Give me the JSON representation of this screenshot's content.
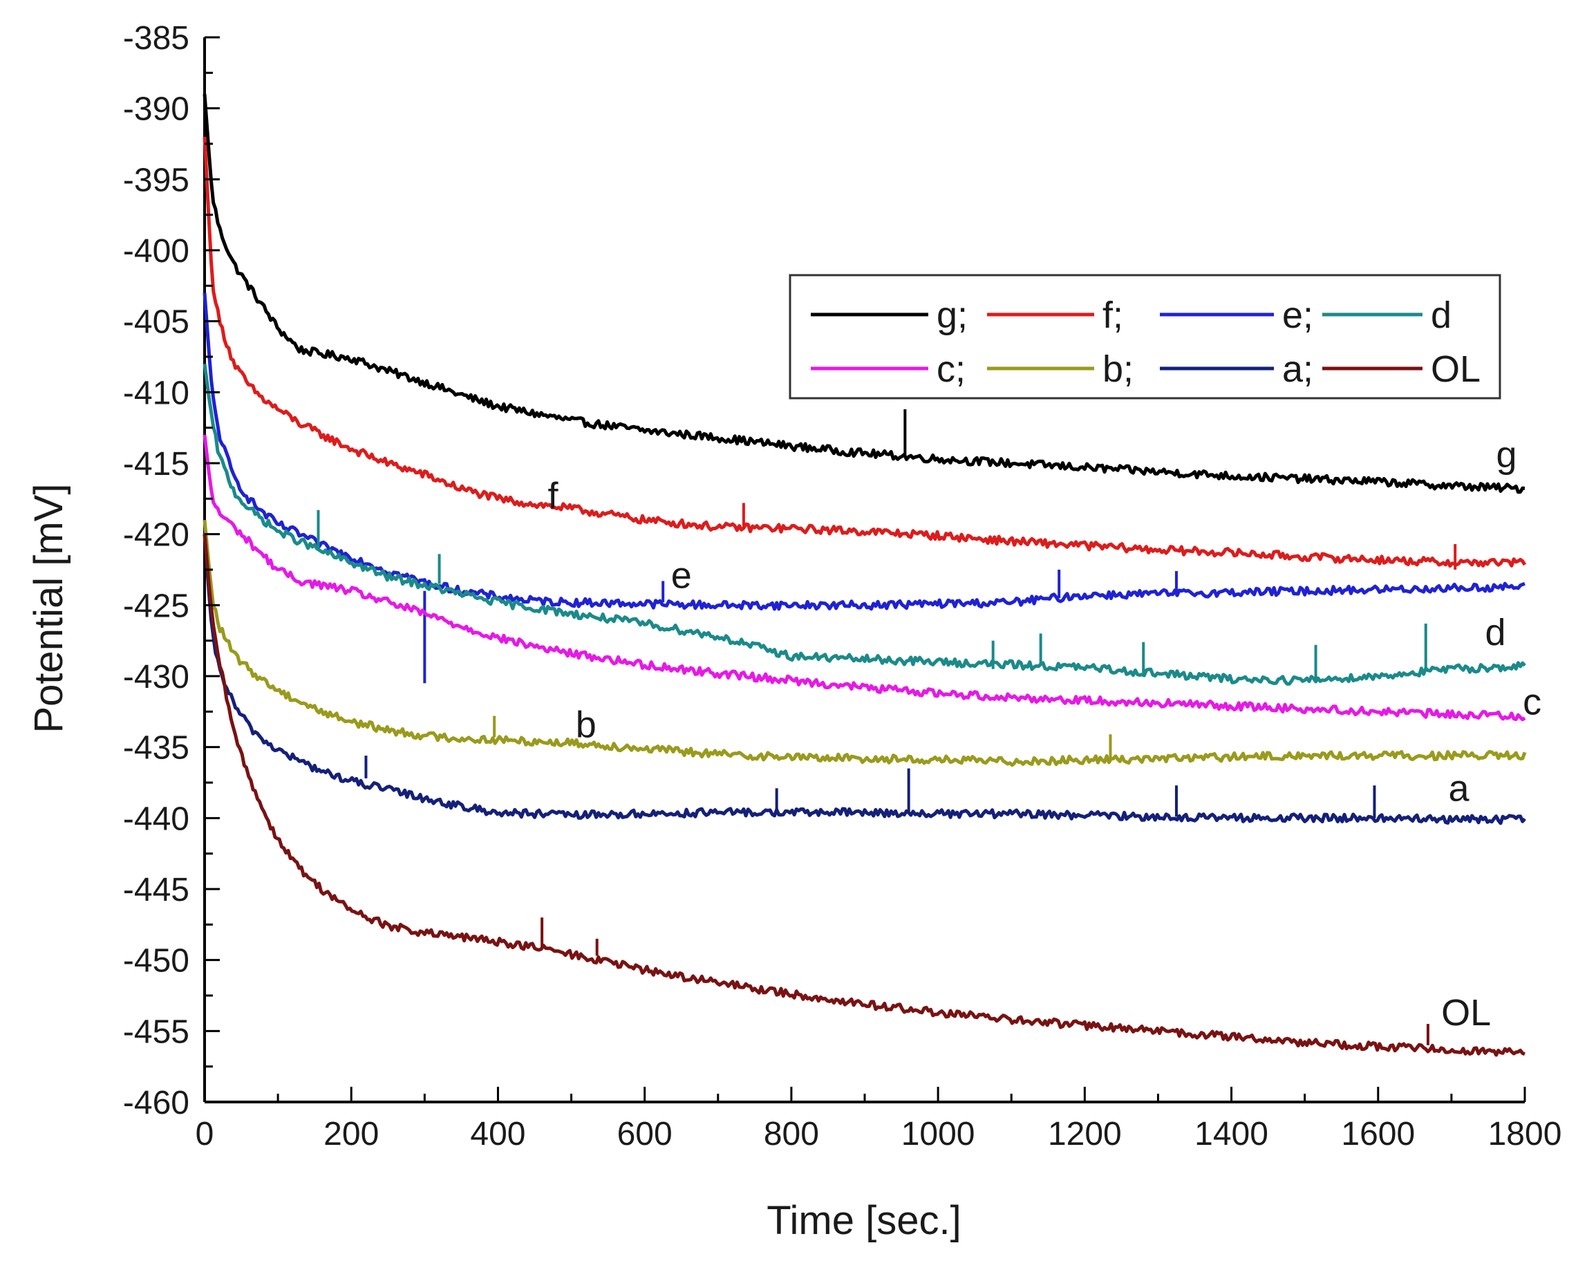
{
  "chart_data": {
    "type": "line",
    "title": "",
    "xlabel": "Time [sec.]",
    "ylabel": "Potential [mV]",
    "xlim": [
      0,
      1800
    ],
    "ylim": [
      -460,
      -385
    ],
    "x_ticks": [
      0,
      200,
      400,
      600,
      800,
      1000,
      1200,
      1400,
      1600,
      1800
    ],
    "y_ticks": [
      -385,
      -390,
      -395,
      -400,
      -405,
      -410,
      -415,
      -420,
      -425,
      -430,
      -435,
      -440,
      -445,
      -450,
      -455,
      -460
    ],
    "x_tick_labels": [
      "0",
      "200",
      "400",
      "600",
      "800",
      "1000",
      "1200",
      "1400",
      "1600",
      "1800"
    ],
    "y_tick_labels": [
      "-385",
      "-390",
      "-395",
      "-400",
      "-405",
      "-410",
      "-415",
      "-420",
      "-425",
      "-430",
      "-435",
      "-440",
      "-445",
      "-450",
      "-455",
      "-460"
    ],
    "legend_position": "top-right",
    "legend": [
      [
        "g;",
        "f;",
        "e;",
        "d"
      ],
      [
        "c;",
        "b;",
        "a;",
        "OL"
      ]
    ],
    "series": [
      {
        "name": "g",
        "label": "g",
        "legend_label": "g;",
        "color": "#000000",
        "x": [
          0,
          10,
          20,
          40,
          60,
          80,
          100,
          130,
          160,
          200,
          250,
          300,
          350,
          400,
          450,
          500,
          600,
          700,
          800,
          900,
          1000,
          1100,
          1200,
          1300,
          1400,
          1500,
          1600,
          1700,
          1800
        ],
        "y": [
          -389,
          -396,
          -398.5,
          -401,
          -402.5,
          -404,
          -405.5,
          -407,
          -407.3,
          -407.6,
          -408.5,
          -409.3,
          -410.2,
          -411,
          -411.5,
          -412,
          -412.7,
          -413.2,
          -413.8,
          -414.3,
          -414.7,
          -415,
          -415.3,
          -415.6,
          -415.9,
          -416.1,
          -416.3,
          -416.6,
          -416.8
        ],
        "spikes": [
          [
            955,
            -414.5,
            -411.2
          ]
        ]
      },
      {
        "name": "f",
        "label": "f",
        "legend_label": "f;",
        "color": "#dd1c1c",
        "x": [
          0,
          10,
          20,
          40,
          60,
          80,
          100,
          130,
          160,
          200,
          250,
          300,
          350,
          400,
          450,
          500,
          600,
          700,
          800,
          900,
          1000,
          1100,
          1200,
          1300,
          1400,
          1500,
          1600,
          1700,
          1800
        ],
        "y": [
          -392,
          -402,
          -405,
          -408,
          -409.5,
          -410.5,
          -411.2,
          -412.2,
          -413,
          -414,
          -415,
          -415.8,
          -416.8,
          -417.5,
          -417.9,
          -418.2,
          -419,
          -419.5,
          -419.6,
          -419.8,
          -420.1,
          -420.5,
          -420.8,
          -421.1,
          -421.3,
          -421.6,
          -421.8,
          -422,
          -422
        ],
        "spikes": [
          [
            735,
            -419.5,
            -417.8
          ],
          [
            1705,
            -422.5,
            -420.7
          ]
        ]
      },
      {
        "name": "e",
        "label": "e",
        "legend_label": "e;",
        "color": "#1f22d4",
        "x": [
          0,
          10,
          20,
          40,
          60,
          80,
          100,
          130,
          160,
          200,
          250,
          300,
          350,
          400,
          450,
          500,
          600,
          700,
          800,
          900,
          1000,
          1100,
          1200,
          1300,
          1400,
          1500,
          1600,
          1700,
          1800
        ],
        "y": [
          -403,
          -410,
          -413,
          -416,
          -417.5,
          -418.5,
          -419.3,
          -420,
          -420.8,
          -421.6,
          -422.6,
          -423.4,
          -424,
          -424.4,
          -424.7,
          -424.8,
          -424.9,
          -425,
          -425,
          -425,
          -424.9,
          -424.8,
          -424.3,
          -424.2,
          -424.1,
          -424,
          -423.9,
          -423.8,
          -423.7
        ],
        "spikes": [
          [
            300,
            -424,
            -430.5
          ],
          [
            1165,
            -424.5,
            -422.5
          ],
          [
            1325,
            -424.2,
            -422.6
          ],
          [
            625,
            -424.8,
            -423.3
          ]
        ]
      },
      {
        "name": "d",
        "label": "d",
        "legend_label": "d",
        "color": "#1b8a8a",
        "x": [
          0,
          10,
          20,
          40,
          60,
          80,
          100,
          130,
          160,
          200,
          250,
          300,
          350,
          400,
          450,
          500,
          600,
          700,
          800,
          900,
          1000,
          1100,
          1200,
          1300,
          1400,
          1500,
          1600,
          1700,
          1800
        ],
        "y": [
          -408,
          -412,
          -414.5,
          -417,
          -418.2,
          -419,
          -419.8,
          -420.5,
          -421.2,
          -422,
          -423,
          -423.6,
          -424.2,
          -424.8,
          -425.2,
          -425.6,
          -426.3,
          -427.2,
          -428.6,
          -428.8,
          -429,
          -429.2,
          -429.4,
          -429.8,
          -430.2,
          -430.3,
          -430,
          -429.5,
          -429.3
        ],
        "spikes": [
          [
            155,
            -421,
            -418.3
          ],
          [
            320,
            -423.5,
            -421.4
          ],
          [
            1075,
            -429.5,
            -427.5
          ],
          [
            1140,
            -429.2,
            -427
          ],
          [
            1280,
            -429.8,
            -427.6
          ],
          [
            1515,
            -430.3,
            -427.8
          ],
          [
            1665,
            -429.6,
            -426.3
          ]
        ]
      },
      {
        "name": "c",
        "label": "c",
        "legend_label": "c;",
        "color": "#e619e6",
        "x": [
          0,
          10,
          20,
          40,
          60,
          80,
          100,
          130,
          160,
          200,
          250,
          300,
          350,
          400,
          450,
          500,
          600,
          700,
          800,
          900,
          1000,
          1100,
          1200,
          1300,
          1400,
          1500,
          1600,
          1700,
          1800
        ],
        "y": [
          -413,
          -417.5,
          -418.5,
          -419.5,
          -420.5,
          -421.5,
          -422.5,
          -423.3,
          -423.6,
          -424,
          -424.8,
          -425.6,
          -426.5,
          -427.3,
          -427.9,
          -428.4,
          -429.2,
          -429.8,
          -430.3,
          -430.8,
          -431.2,
          -431.5,
          -431.7,
          -431.9,
          -432.1,
          -432.3,
          -432.5,
          -432.7,
          -432.8
        ],
        "spikes": []
      },
      {
        "name": "b",
        "label": "b",
        "legend_label": "b;",
        "color": "#9a9a1c",
        "x": [
          0,
          10,
          20,
          40,
          60,
          80,
          100,
          130,
          160,
          200,
          250,
          300,
          350,
          400,
          450,
          500,
          600,
          700,
          800,
          900,
          1000,
          1100,
          1200,
          1300,
          1400,
          1500,
          1600,
          1700,
          1800
        ],
        "y": [
          -419,
          -424.5,
          -426.5,
          -428.5,
          -429.5,
          -430.3,
          -431,
          -431.8,
          -432.5,
          -433.2,
          -433.8,
          -434.2,
          -434.4,
          -434.5,
          -434.6,
          -434.7,
          -435.1,
          -435.5,
          -435.7,
          -435.8,
          -435.9,
          -436,
          -435.9,
          -435.8,
          -435.7,
          -435.6,
          -435.6,
          -435.6,
          -435.6
        ],
        "spikes": [
          [
            395,
            -434.3,
            -432.8
          ],
          [
            1235,
            -435.8,
            -434.1
          ]
        ]
      },
      {
        "name": "a",
        "label": "a",
        "legend_label": "a;",
        "color": "#14207a",
        "x": [
          0,
          10,
          20,
          40,
          60,
          80,
          100,
          130,
          160,
          200,
          250,
          300,
          350,
          400,
          450,
          500,
          600,
          700,
          800,
          900,
          1000,
          1100,
          1200,
          1300,
          1400,
          1500,
          1600,
          1700,
          1800
        ],
        "y": [
          -420,
          -427,
          -429.5,
          -432,
          -433.5,
          -434.5,
          -435.2,
          -436,
          -436.7,
          -437.4,
          -438,
          -438.6,
          -439.2,
          -439.6,
          -439.7,
          -439.8,
          -439.7,
          -439.6,
          -439.6,
          -439.6,
          -439.7,
          -439.7,
          -439.8,
          -439.9,
          -440,
          -440,
          -440,
          -440.1,
          -440.1
        ],
        "spikes": [
          [
            220,
            -437.2,
            -435.6
          ],
          [
            780,
            -439.6,
            -437.9
          ],
          [
            960,
            -439.7,
            -436.5
          ],
          [
            1325,
            -439.9,
            -437.7
          ],
          [
            1595,
            -440,
            -437.7
          ]
        ]
      },
      {
        "name": "OL",
        "label": "OL",
        "legend_label": "OL",
        "color": "#7a1212",
        "x": [
          0,
          10,
          20,
          40,
          60,
          80,
          100,
          130,
          160,
          200,
          250,
          300,
          350,
          400,
          450,
          500,
          600,
          700,
          800,
          900,
          1000,
          1100,
          1200,
          1300,
          1400,
          1500,
          1600,
          1700,
          1800
        ],
        "y": [
          -420,
          -426,
          -429,
          -434,
          -437,
          -439.5,
          -441.5,
          -443.6,
          -445,
          -446.5,
          -447.6,
          -448.1,
          -448.4,
          -448.7,
          -449.1,
          -449.6,
          -450.7,
          -451.6,
          -452.4,
          -453.1,
          -453.7,
          -454.2,
          -454.6,
          -455,
          -455.4,
          -455.8,
          -456.1,
          -456.3,
          -456.5
        ],
        "spikes": [
          [
            460,
            -449.2,
            -447
          ],
          [
            535,
            -449.7,
            -448.5
          ],
          [
            1668,
            -456,
            -454.5
          ]
        ]
      }
    ],
    "curve_labels": [
      {
        "text": "g",
        "x": 1775,
        "y": -415.3
      },
      {
        "text": "f",
        "x": 475,
        "y": -418.2
      },
      {
        "text": "e",
        "x": 650,
        "y": -423.8
      },
      {
        "text": "d",
        "x": 1760,
        "y": -427.8
      },
      {
        "text": "c",
        "x": 1810,
        "y": -432.7
      },
      {
        "text": "b",
        "x": 520,
        "y": -434.3
      },
      {
        "text": "a",
        "x": 1710,
        "y": -438.8
      },
      {
        "text": "OL",
        "x": 1720,
        "y": -454.6
      }
    ]
  }
}
